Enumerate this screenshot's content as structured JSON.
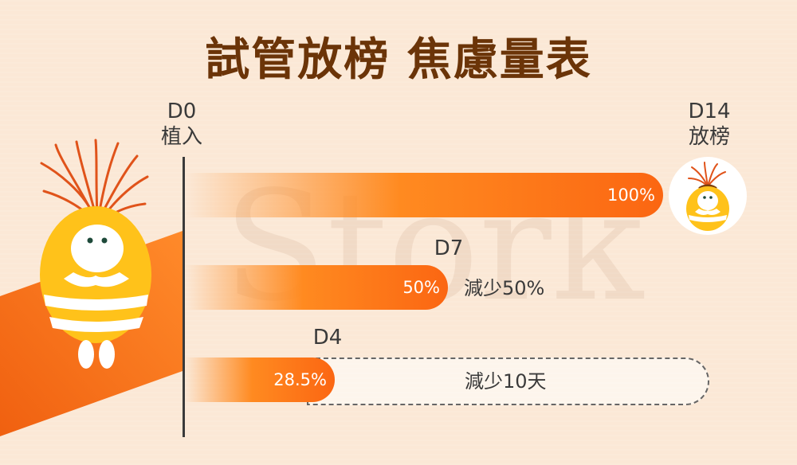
{
  "title": "試管放榜 焦慮量表",
  "watermark": "Stork",
  "milestones": {
    "d0": {
      "day": "D0",
      "event": "植入"
    },
    "d14": {
      "day": "D14",
      "event": "放榜"
    }
  },
  "colors": {
    "title": "#6b3408",
    "bar_start": "#ff8a20",
    "bar_end": "#fb6612",
    "background": "#fbe8d6",
    "text": "#3a3a3a"
  },
  "chart_data": {
    "type": "bar",
    "orientation": "horizontal",
    "title": "試管放榜 焦慮量表",
    "unit": "%",
    "xlim": [
      0,
      100
    ],
    "series": [
      {
        "label": "D14",
        "value": 100,
        "value_label": "100%",
        "note": ""
      },
      {
        "label": "D7",
        "value": 50,
        "value_label": "50%",
        "note": "減少50%"
      },
      {
        "label": "D4",
        "value": 28.5,
        "value_label": "28.5%",
        "note": "減少10天"
      }
    ]
  },
  "icons": {
    "mascot": "chick-mascot-icon",
    "badge": "mascot-badge-icon"
  }
}
